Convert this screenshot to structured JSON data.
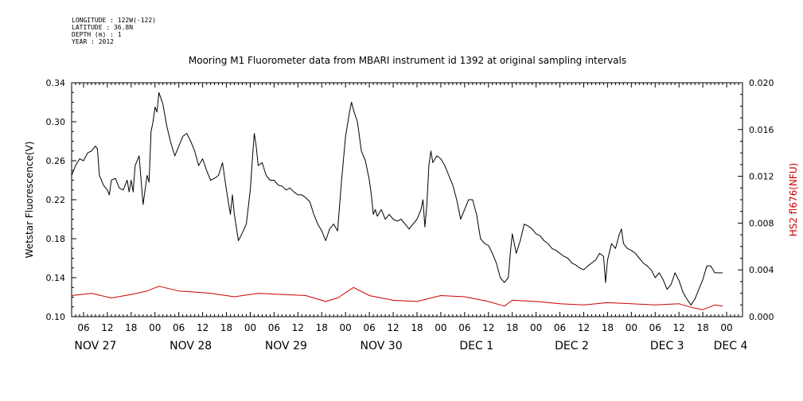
{
  "meta": {
    "longitude": "LONGITUDE : 122W(-122)",
    "latitude": "LATITUDE : 36.8N",
    "depth": "DEPTH (m) : 1",
    "year": "YEAR : 2012"
  },
  "chart_data": {
    "type": "line",
    "title": "Mooring M1 Fluorometer data from MBARI instrument id 1392 at original sampling intervals",
    "xlabel": "",
    "ylabel": "Wetstar Fluorescence(V)",
    "y2label": "HS2 fl676(NFU)",
    "xlim": [
      3.0,
      172.0
    ],
    "ylim": [
      0.1,
      0.34
    ],
    "y2lim": [
      0.0,
      0.02
    ],
    "yticks": [
      "0.10",
      "0.14",
      "0.18",
      "0.22",
      "0.26",
      "0.30",
      "0.34"
    ],
    "y2ticks": [
      "0.000",
      "0.004",
      "0.008",
      "0.012",
      "0.016",
      "0.020"
    ],
    "hour_ticks": [
      {
        "x": 6,
        "label": "06"
      },
      {
        "x": 12,
        "label": "12"
      },
      {
        "x": 18,
        "label": "18"
      },
      {
        "x": 24,
        "label": "00"
      },
      {
        "x": 30,
        "label": "06"
      },
      {
        "x": 36,
        "label": "12"
      },
      {
        "x": 42,
        "label": "18"
      },
      {
        "x": 48,
        "label": "00"
      },
      {
        "x": 54,
        "label": "06"
      },
      {
        "x": 60,
        "label": "12"
      },
      {
        "x": 66,
        "label": "18"
      },
      {
        "x": 72,
        "label": "00"
      },
      {
        "x": 78,
        "label": "06"
      },
      {
        "x": 84,
        "label": "12"
      },
      {
        "x": 90,
        "label": "18"
      },
      {
        "x": 96,
        "label": "00"
      },
      {
        "x": 102,
        "label": "06"
      },
      {
        "x": 108,
        "label": "12"
      },
      {
        "x": 114,
        "label": "18"
      },
      {
        "x": 120,
        "label": "00"
      },
      {
        "x": 126,
        "label": "06"
      },
      {
        "x": 132,
        "label": "12"
      },
      {
        "x": 138,
        "label": "18"
      },
      {
        "x": 144,
        "label": "00"
      },
      {
        "x": 150,
        "label": "06"
      },
      {
        "x": 156,
        "label": "12"
      },
      {
        "x": 162,
        "label": "18"
      },
      {
        "x": 168,
        "label": "00"
      }
    ],
    "day_labels": [
      {
        "x": 9,
        "label": "NOV 27"
      },
      {
        "x": 33,
        "label": "NOV 28"
      },
      {
        "x": 57,
        "label": "NOV 29"
      },
      {
        "x": 81,
        "label": "NOV 30"
      },
      {
        "x": 105,
        "label": "DEC  1"
      },
      {
        "x": 129,
        "label": "DEC  2"
      },
      {
        "x": 153,
        "label": "DEC  3"
      },
      {
        "x": 169,
        "label": "DEC  4"
      }
    ],
    "grid": false,
    "series": [
      {
        "name": "Wetstar Fluorescence",
        "axis": "left",
        "color": "#000000",
        "points": [
          [
            3.0,
            0.245
          ],
          [
            4.0,
            0.255
          ],
          [
            5.0,
            0.262
          ],
          [
            6.0,
            0.26
          ],
          [
            7.0,
            0.268
          ],
          [
            8.0,
            0.27
          ],
          [
            9.0,
            0.275
          ],
          [
            9.5,
            0.272
          ],
          [
            10.0,
            0.245
          ],
          [
            11.0,
            0.235
          ],
          [
            12.0,
            0.23
          ],
          [
            12.5,
            0.225
          ],
          [
            13.0,
            0.24
          ],
          [
            14.0,
            0.242
          ],
          [
            15.0,
            0.232
          ],
          [
            16.0,
            0.23
          ],
          [
            17.0,
            0.24
          ],
          [
            17.5,
            0.228
          ],
          [
            18.0,
            0.24
          ],
          [
            18.5,
            0.228
          ],
          [
            19.0,
            0.255
          ],
          [
            20.0,
            0.265
          ],
          [
            20.5,
            0.24
          ],
          [
            21.0,
            0.215
          ],
          [
            22.0,
            0.245
          ],
          [
            22.5,
            0.238
          ],
          [
            23.0,
            0.29
          ],
          [
            23.5,
            0.3
          ],
          [
            24.0,
            0.315
          ],
          [
            24.5,
            0.31
          ],
          [
            25.0,
            0.33
          ],
          [
            26.0,
            0.318
          ],
          [
            27.0,
            0.295
          ],
          [
            28.0,
            0.278
          ],
          [
            29.0,
            0.265
          ],
          [
            30.0,
            0.275
          ],
          [
            31.0,
            0.285
          ],
          [
            32.0,
            0.288
          ],
          [
            33.0,
            0.28
          ],
          [
            34.0,
            0.27
          ],
          [
            35.0,
            0.255
          ],
          [
            36.0,
            0.262
          ],
          [
            37.0,
            0.25
          ],
          [
            38.0,
            0.24
          ],
          [
            39.0,
            0.242
          ],
          [
            40.0,
            0.245
          ],
          [
            41.0,
            0.258
          ],
          [
            42.0,
            0.23
          ],
          [
            43.0,
            0.205
          ],
          [
            43.5,
            0.225
          ],
          [
            44.0,
            0.205
          ],
          [
            45.0,
            0.178
          ],
          [
            46.0,
            0.186
          ],
          [
            47.0,
            0.195
          ],
          [
            48.0,
            0.23
          ],
          [
            48.5,
            0.26
          ],
          [
            49.0,
            0.288
          ],
          [
            49.5,
            0.275
          ],
          [
            50.0,
            0.255
          ],
          [
            51.0,
            0.258
          ],
          [
            52.0,
            0.245
          ],
          [
            53.0,
            0.24
          ],
          [
            54.0,
            0.24
          ],
          [
            55.0,
            0.235
          ],
          [
            56.0,
            0.234
          ],
          [
            57.0,
            0.23
          ],
          [
            58.0,
            0.232
          ],
          [
            59.0,
            0.228
          ],
          [
            60.0,
            0.225
          ],
          [
            61.0,
            0.225
          ],
          [
            62.0,
            0.222
          ],
          [
            63.0,
            0.218
          ],
          [
            64.0,
            0.205
          ],
          [
            65.0,
            0.195
          ],
          [
            66.0,
            0.188
          ],
          [
            67.0,
            0.178
          ],
          [
            68.0,
            0.19
          ],
          [
            69.0,
            0.195
          ],
          [
            70.0,
            0.188
          ],
          [
            71.0,
            0.24
          ],
          [
            72.0,
            0.285
          ],
          [
            73.0,
            0.31
          ],
          [
            73.5,
            0.32
          ],
          [
            74.0,
            0.312
          ],
          [
            75.0,
            0.3
          ],
          [
            76.0,
            0.27
          ],
          [
            77.0,
            0.26
          ],
          [
            78.0,
            0.24
          ],
          [
            78.5,
            0.225
          ],
          [
            79.0,
            0.205
          ],
          [
            79.5,
            0.21
          ],
          [
            80.0,
            0.203
          ],
          [
            81.0,
            0.21
          ],
          [
            82.0,
            0.2
          ],
          [
            83.0,
            0.205
          ],
          [
            84.0,
            0.2
          ],
          [
            85.0,
            0.198
          ],
          [
            86.0,
            0.2
          ],
          [
            87.0,
            0.195
          ],
          [
            88.0,
            0.19
          ],
          [
            89.0,
            0.195
          ],
          [
            90.0,
            0.2
          ],
          [
            91.0,
            0.21
          ],
          [
            91.5,
            0.22
          ],
          [
            92.0,
            0.192
          ],
          [
            92.5,
            0.215
          ],
          [
            93.0,
            0.255
          ],
          [
            93.5,
            0.27
          ],
          [
            94.0,
            0.258
          ],
          [
            95.0,
            0.265
          ],
          [
            96.0,
            0.262
          ],
          [
            97.0,
            0.255
          ],
          [
            98.0,
            0.245
          ],
          [
            99.0,
            0.235
          ],
          [
            100.0,
            0.22
          ],
          [
            101.0,
            0.2
          ],
          [
            102.0,
            0.21
          ],
          [
            103.0,
            0.22
          ],
          [
            104.0,
            0.22
          ],
          [
            105.0,
            0.205
          ],
          [
            106.0,
            0.18
          ],
          [
            107.0,
            0.175
          ],
          [
            108.0,
            0.173
          ],
          [
            109.0,
            0.165
          ],
          [
            110.0,
            0.155
          ],
          [
            111.0,
            0.14
          ],
          [
            112.0,
            0.135
          ],
          [
            113.0,
            0.14
          ],
          [
            113.5,
            0.165
          ],
          [
            114.0,
            0.185
          ],
          [
            115.0,
            0.165
          ],
          [
            116.0,
            0.178
          ],
          [
            117.0,
            0.195
          ],
          [
            118.0,
            0.193
          ],
          [
            119.0,
            0.19
          ],
          [
            120.0,
            0.185
          ],
          [
            121.0,
            0.183
          ],
          [
            122.0,
            0.178
          ],
          [
            123.0,
            0.175
          ],
          [
            124.0,
            0.17
          ],
          [
            125.0,
            0.168
          ],
          [
            126.0,
            0.165
          ],
          [
            127.0,
            0.162
          ],
          [
            128.0,
            0.16
          ],
          [
            129.0,
            0.155
          ],
          [
            130.0,
            0.153
          ],
          [
            131.0,
            0.15
          ],
          [
            132.0,
            0.148
          ],
          [
            133.0,
            0.152
          ],
          [
            134.0,
            0.155
          ],
          [
            135.0,
            0.158
          ],
          [
            136.0,
            0.165
          ],
          [
            137.0,
            0.162
          ],
          [
            137.5,
            0.135
          ],
          [
            138.0,
            0.158
          ],
          [
            139.0,
            0.175
          ],
          [
            140.0,
            0.17
          ],
          [
            141.0,
            0.185
          ],
          [
            141.5,
            0.19
          ],
          [
            142.0,
            0.175
          ],
          [
            143.0,
            0.17
          ],
          [
            144.0,
            0.168
          ],
          [
            145.0,
            0.165
          ],
          [
            146.0,
            0.16
          ],
          [
            147.0,
            0.155
          ],
          [
            148.0,
            0.152
          ],
          [
            149.0,
            0.148
          ],
          [
            150.0,
            0.14
          ],
          [
            151.0,
            0.145
          ],
          [
            152.0,
            0.138
          ],
          [
            153.0,
            0.128
          ],
          [
            154.0,
            0.133
          ],
          [
            155.0,
            0.145
          ],
          [
            156.0,
            0.137
          ],
          [
            157.0,
            0.125
          ],
          [
            158.0,
            0.118
          ],
          [
            159.0,
            0.112
          ],
          [
            160.0,
            0.118
          ],
          [
            161.0,
            0.128
          ],
          [
            162.0,
            0.138
          ],
          [
            163.0,
            0.152
          ],
          [
            164.0,
            0.152
          ],
          [
            165.0,
            0.145
          ],
          [
            166.0,
            0.145
          ],
          [
            167.0,
            0.145
          ]
        ]
      },
      {
        "name": "HS2 fl676",
        "axis": "right",
        "color": "#cc0000",
        "points": [
          [
            3.0,
            0.0018
          ],
          [
            8.0,
            0.002
          ],
          [
            13.0,
            0.0016
          ],
          [
            18.0,
            0.0019
          ],
          [
            22.0,
            0.0022
          ],
          [
            25.0,
            0.0026
          ],
          [
            30.0,
            0.0022
          ],
          [
            38.0,
            0.002
          ],
          [
            44.0,
            0.0017
          ],
          [
            50.0,
            0.002
          ],
          [
            56.0,
            0.0019
          ],
          [
            62.0,
            0.0018
          ],
          [
            67.0,
            0.0013
          ],
          [
            70.0,
            0.0016
          ],
          [
            74.0,
            0.0025
          ],
          [
            78.0,
            0.0018
          ],
          [
            84.0,
            0.0014
          ],
          [
            90.0,
            0.0013
          ],
          [
            96.0,
            0.0018
          ],
          [
            102.0,
            0.0017
          ],
          [
            108.0,
            0.0013
          ],
          [
            112.0,
            0.0009
          ],
          [
            114.0,
            0.0014
          ],
          [
            120.0,
            0.0013
          ],
          [
            126.0,
            0.0011
          ],
          [
            132.0,
            0.001
          ],
          [
            138.0,
            0.0012
          ],
          [
            144.0,
            0.0011
          ],
          [
            150.0,
            0.001
          ],
          [
            156.0,
            0.0011
          ],
          [
            159.0,
            0.0008
          ],
          [
            162.0,
            0.0006
          ],
          [
            165.0,
            0.001
          ],
          [
            167.0,
            0.0009
          ]
        ]
      }
    ]
  }
}
